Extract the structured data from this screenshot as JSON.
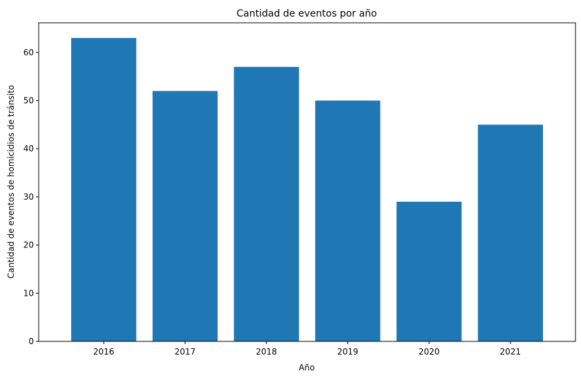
{
  "chart_data": {
    "type": "bar",
    "title": "Cantidad de eventos por año",
    "xlabel": "Año",
    "ylabel": "Cantidad de eventos de homicidios de tránsito",
    "categories": [
      "2016",
      "2017",
      "2018",
      "2019",
      "2020",
      "2021"
    ],
    "values": [
      63,
      52,
      57,
      50,
      29,
      45
    ],
    "yticks": [
      0,
      10,
      20,
      30,
      40,
      50,
      60
    ],
    "ylim": [
      0,
      66.15
    ],
    "grid": false,
    "legend": "none",
    "bar_color": "#1f77b4"
  }
}
